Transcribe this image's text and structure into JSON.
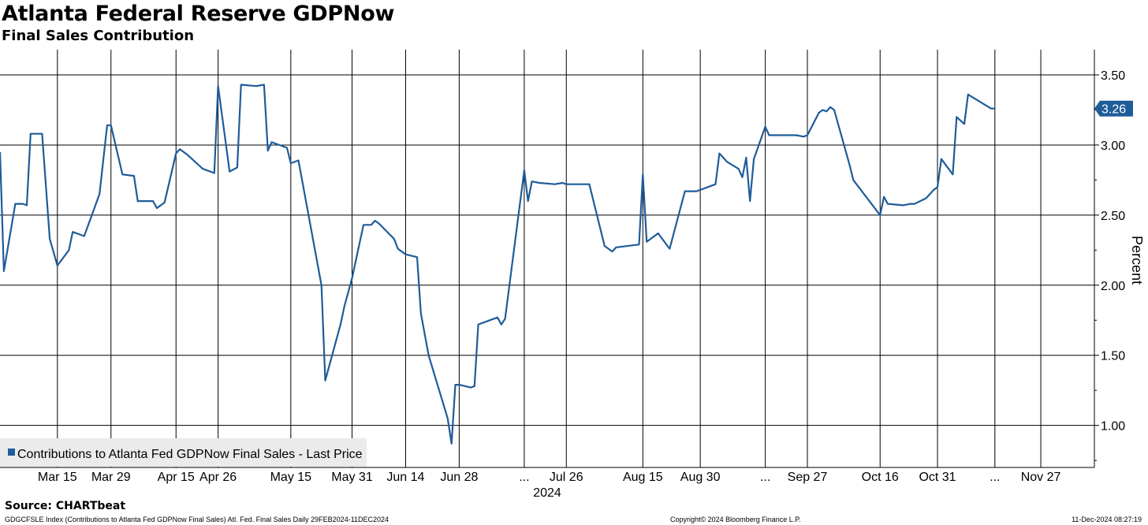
{
  "header": {
    "title": "Atlanta Federal Reserve GDPNow",
    "subtitle": "Final Sales Contribution"
  },
  "footer": {
    "source": "Source: CHARTbeat",
    "index_info": "GDGCFSLE Index (Contributions to Atlanta Fed GDPNow Final Sales) Atl. Fed. Final Sales  Daily 29FEB2024-11DEC2024",
    "copyright": "Copyright© 2024 Bloomberg Finance L.P.",
    "timestamp": "11-Dec-2024 08:27:19"
  },
  "chart_data": {
    "type": "line",
    "title": "Atlanta Federal Reserve GDPNow",
    "subtitle": "Final Sales Contribution",
    "ylabel": "Percent",
    "xlabel": "2024",
    "ylim": [
      0.7,
      3.68
    ],
    "grid": true,
    "y_axis_side": "right",
    "legend_position": "bottom-left",
    "yticks": [
      1.0,
      1.5,
      2.0,
      2.5,
      3.0,
      3.5
    ],
    "ytick_labels": [
      "1.00",
      "1.50",
      "2.00",
      "2.50",
      "3.00",
      "3.50"
    ],
    "x_range": [
      "2024-02-29",
      "2024-12-11"
    ],
    "x_gridlines": [
      "2024-03-15",
      "2024-03-29",
      "2024-04-15",
      "2024-04-26",
      "2024-05-15",
      "2024-05-31",
      "2024-06-14",
      "2024-06-28",
      "2024-07-15",
      "2024-07-26",
      "2024-08-15",
      "2024-08-30",
      "2024-09-16",
      "2024-09-27",
      "2024-10-16",
      "2024-10-31",
      "2024-11-15",
      "2024-11-27"
    ],
    "x_tick_labels": [
      {
        "date": "2024-03-15",
        "label": "Mar 15"
      },
      {
        "date": "2024-03-29",
        "label": "Mar 29"
      },
      {
        "date": "2024-04-15",
        "label": "Apr 15"
      },
      {
        "date": "2024-04-26",
        "label": "Apr 26"
      },
      {
        "date": "2024-05-15",
        "label": "May 15"
      },
      {
        "date": "2024-05-31",
        "label": "May 31"
      },
      {
        "date": "2024-06-14",
        "label": "Jun 14"
      },
      {
        "date": "2024-06-28",
        "label": "Jun 28"
      },
      {
        "date": "2024-07-15",
        "label": "..."
      },
      {
        "date": "2024-07-26",
        "label": "Jul 26"
      },
      {
        "date": "2024-08-15",
        "label": "Aug 15"
      },
      {
        "date": "2024-08-30",
        "label": "Aug 30"
      },
      {
        "date": "2024-09-16",
        "label": "..."
      },
      {
        "date": "2024-09-27",
        "label": "Sep 27"
      },
      {
        "date": "2024-10-16",
        "label": "Oct 16"
      },
      {
        "date": "2024-10-31",
        "label": "Oct 31"
      },
      {
        "date": "2024-11-15",
        "label": "..."
      },
      {
        "date": "2024-11-27",
        "label": "Nov 27"
      }
    ],
    "last_value_label": "3.26",
    "series": [
      {
        "name": "Contributions to Atlanta Fed GDPNow Final Sales - Last Price",
        "color": "#1f5c99",
        "points": [
          [
            "2024-02-29",
            2.95
          ],
          [
            "2024-03-01",
            2.1
          ],
          [
            "2024-03-04",
            2.58
          ],
          [
            "2024-03-06",
            2.58
          ],
          [
            "2024-03-07",
            2.57
          ],
          [
            "2024-03-08",
            3.08
          ],
          [
            "2024-03-11",
            3.08
          ],
          [
            "2024-03-13",
            2.33
          ],
          [
            "2024-03-15",
            2.14
          ],
          [
            "2024-03-18",
            2.25
          ],
          [
            "2024-03-19",
            2.38
          ],
          [
            "2024-03-22",
            2.35
          ],
          [
            "2024-03-26",
            2.65
          ],
          [
            "2024-03-28",
            3.14
          ],
          [
            "2024-03-29",
            3.14
          ],
          [
            "2024-04-01",
            2.79
          ],
          [
            "2024-04-04",
            2.78
          ],
          [
            "2024-04-05",
            2.6
          ],
          [
            "2024-04-09",
            2.6
          ],
          [
            "2024-04-10",
            2.55
          ],
          [
            "2024-04-12",
            2.59
          ],
          [
            "2024-04-15",
            2.94
          ],
          [
            "2024-04-16",
            2.97
          ],
          [
            "2024-04-18",
            2.93
          ],
          [
            "2024-04-22",
            2.83
          ],
          [
            "2024-04-25",
            2.8
          ],
          [
            "2024-04-26",
            3.42
          ],
          [
            "2024-04-29",
            2.81
          ],
          [
            "2024-05-01",
            2.84
          ],
          [
            "2024-05-02",
            3.43
          ],
          [
            "2024-05-06",
            3.42
          ],
          [
            "2024-05-08",
            3.43
          ],
          [
            "2024-05-09",
            2.96
          ],
          [
            "2024-05-10",
            3.02
          ],
          [
            "2024-05-14",
            2.98
          ],
          [
            "2024-05-15",
            2.87
          ],
          [
            "2024-05-17",
            2.89
          ],
          [
            "2024-05-23",
            2.0
          ],
          [
            "2024-05-24",
            1.32
          ],
          [
            "2024-05-28",
            1.72
          ],
          [
            "2024-05-29",
            1.85
          ],
          [
            "2024-05-31",
            2.05
          ],
          [
            "2024-06-03",
            2.43
          ],
          [
            "2024-06-05",
            2.43
          ],
          [
            "2024-06-06",
            2.46
          ],
          [
            "2024-06-07",
            2.44
          ],
          [
            "2024-06-11",
            2.33
          ],
          [
            "2024-06-12",
            2.26
          ],
          [
            "2024-06-14",
            2.22
          ],
          [
            "2024-06-17",
            2.2
          ],
          [
            "2024-06-18",
            1.8
          ],
          [
            "2024-06-20",
            1.5
          ],
          [
            "2024-06-25",
            1.05
          ],
          [
            "2024-06-26",
            0.87
          ],
          [
            "2024-06-27",
            1.29
          ],
          [
            "2024-06-28",
            1.29
          ],
          [
            "2024-07-01",
            1.27
          ],
          [
            "2024-07-02",
            1.28
          ],
          [
            "2024-07-03",
            1.72
          ],
          [
            "2024-07-08",
            1.77
          ],
          [
            "2024-07-09",
            1.72
          ],
          [
            "2024-07-10",
            1.76
          ],
          [
            "2024-07-15",
            2.82
          ],
          [
            "2024-07-16",
            2.6
          ],
          [
            "2024-07-17",
            2.74
          ],
          [
            "2024-07-19",
            2.73
          ],
          [
            "2024-07-23",
            2.72
          ],
          [
            "2024-07-25",
            2.73
          ],
          [
            "2024-07-26",
            2.72
          ],
          [
            "2024-07-30",
            2.72
          ],
          [
            "2024-08-01",
            2.72
          ],
          [
            "2024-08-05",
            2.28
          ],
          [
            "2024-08-07",
            2.24
          ],
          [
            "2024-08-08",
            2.27
          ],
          [
            "2024-08-14",
            2.29
          ],
          [
            "2024-08-15",
            2.79
          ],
          [
            "2024-08-16",
            2.31
          ],
          [
            "2024-08-19",
            2.37
          ],
          [
            "2024-08-22",
            2.26
          ],
          [
            "2024-08-26",
            2.67
          ],
          [
            "2024-08-28",
            2.67
          ],
          [
            "2024-08-29",
            2.67
          ],
          [
            "2024-08-30",
            2.68
          ],
          [
            "2024-09-03",
            2.72
          ],
          [
            "2024-09-04",
            2.94
          ],
          [
            "2024-09-06",
            2.88
          ],
          [
            "2024-09-09",
            2.83
          ],
          [
            "2024-09-10",
            2.77
          ],
          [
            "2024-09-11",
            2.91
          ],
          [
            "2024-09-12",
            2.6
          ],
          [
            "2024-09-13",
            2.9
          ],
          [
            "2024-09-16",
            3.13
          ],
          [
            "2024-09-17",
            3.07
          ],
          [
            "2024-09-18",
            3.07
          ],
          [
            "2024-09-24",
            3.07
          ],
          [
            "2024-09-26",
            3.06
          ],
          [
            "2024-09-27",
            3.07
          ],
          [
            "2024-09-30",
            3.23
          ],
          [
            "2024-10-01",
            3.25
          ],
          [
            "2024-10-02",
            3.24
          ],
          [
            "2024-10-03",
            3.27
          ],
          [
            "2024-10-04",
            3.25
          ],
          [
            "2024-10-08",
            2.86
          ],
          [
            "2024-10-09",
            2.75
          ],
          [
            "2024-10-16",
            2.5
          ],
          [
            "2024-10-17",
            2.63
          ],
          [
            "2024-10-18",
            2.58
          ],
          [
            "2024-10-22",
            2.57
          ],
          [
            "2024-10-24",
            2.58
          ],
          [
            "2024-10-25",
            2.58
          ],
          [
            "2024-10-28",
            2.62
          ],
          [
            "2024-10-30",
            2.68
          ],
          [
            "2024-10-31",
            2.7
          ],
          [
            "2024-11-01",
            2.9
          ],
          [
            "2024-11-04",
            2.79
          ],
          [
            "2024-11-05",
            3.2
          ],
          [
            "2024-11-07",
            3.15
          ],
          [
            "2024-11-08",
            3.36
          ],
          [
            "2024-11-14",
            3.26
          ],
          [
            "2024-11-15",
            3.26
          ]
        ]
      }
    ]
  }
}
